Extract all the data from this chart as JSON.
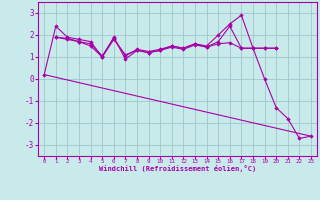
{
  "xlabel": "Windchill (Refroidissement éolien,°C)",
  "bg_color": "#c8eaea",
  "grid_color": "#a0c8c8",
  "line_color": "#aa00aa",
  "marker_color": "#aa00aa",
  "ylim": [
    -3.5,
    3.5
  ],
  "xlim": [
    -0.5,
    23.5
  ],
  "yticks": [
    -3,
    -2,
    -1,
    0,
    1,
    2,
    3
  ],
  "xticks": [
    0,
    1,
    2,
    3,
    4,
    5,
    6,
    7,
    8,
    9,
    10,
    11,
    12,
    13,
    14,
    15,
    16,
    17,
    18,
    19,
    20,
    21,
    22,
    23
  ],
  "series": [
    {
      "x": [
        0,
        1,
        2,
        3,
        4,
        5,
        6,
        7,
        8,
        9,
        10,
        11,
        12,
        13,
        14,
        15,
        16,
        17,
        18,
        19,
        20,
        21,
        22,
        23
      ],
      "y": [
        0.2,
        2.4,
        1.9,
        1.8,
        1.7,
        1.0,
        1.9,
        0.9,
        1.3,
        1.2,
        1.3,
        1.5,
        1.4,
        1.6,
        1.5,
        2.0,
        2.5,
        2.9,
        1.4,
        0.0,
        -1.3,
        -1.8,
        -2.7,
        -2.6
      ]
    },
    {
      "x": [
        1,
        2,
        3,
        4,
        5,
        6,
        7,
        8,
        9,
        10,
        11,
        12,
        13,
        14,
        15,
        16,
        17,
        18,
        19,
        20
      ],
      "y": [
        1.9,
        1.85,
        1.7,
        1.6,
        1.05,
        1.85,
        1.05,
        1.35,
        1.25,
        1.35,
        1.5,
        1.4,
        1.6,
        1.45,
        1.6,
        1.65,
        1.4,
        1.4,
        1.4,
        1.4
      ]
    },
    {
      "x": [
        1,
        2,
        3,
        4,
        5,
        6,
        7,
        8,
        9,
        10,
        11,
        12,
        13,
        14,
        15,
        16,
        17,
        18,
        19,
        20
      ],
      "y": [
        1.9,
        1.8,
        1.7,
        1.5,
        1.0,
        1.8,
        1.1,
        1.3,
        1.2,
        1.3,
        1.45,
        1.35,
        1.55,
        1.45,
        1.7,
        2.4,
        1.4,
        1.4,
        1.4,
        1.4
      ]
    },
    {
      "x": [
        0,
        23
      ],
      "y": [
        0.2,
        -2.6
      ]
    }
  ]
}
